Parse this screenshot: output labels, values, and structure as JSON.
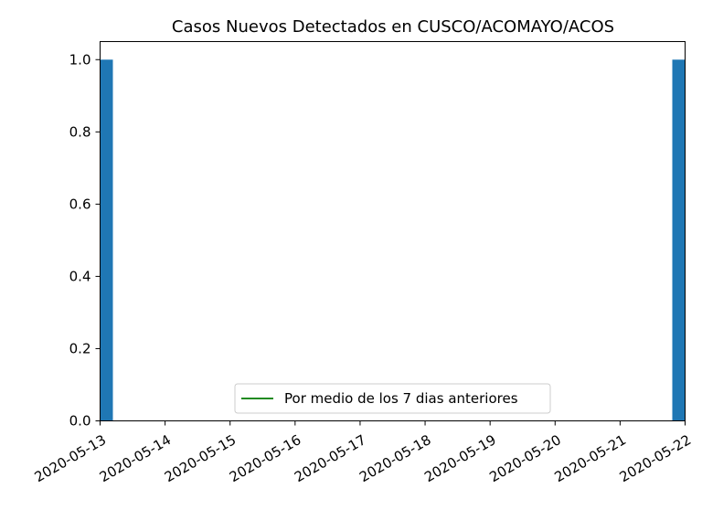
{
  "colors": {
    "bar": "#1f77b4",
    "avg_line": "#228b22",
    "axis": "#000000",
    "background": "#ffffff"
  },
  "chart_data": {
    "type": "bar",
    "title": "Casos Nuevos Detectados en CUSCO/ACOMAYO/ACOS",
    "xlabel": "",
    "ylabel": "",
    "x_tick_labels": [
      "2020-05-13",
      "2020-05-14",
      "2020-05-15",
      "2020-05-16",
      "2020-05-17",
      "2020-05-18",
      "2020-05-19",
      "2020-05-20",
      "2020-05-21",
      "2020-05-22"
    ],
    "y_tick_labels": [
      "0.0",
      "0.2",
      "0.4",
      "0.6",
      "0.8",
      "1.0"
    ],
    "ylim": [
      0,
      1.05
    ],
    "grid": false,
    "legend_position": "bottom-center",
    "series": [
      {
        "type": "bar",
        "points": [
          {
            "date": "2020-05-13",
            "value": 1
          },
          {
            "date": "2020-05-22",
            "value": 1
          }
        ]
      },
      {
        "type": "line",
        "name": "Por medio de los 7 dias anteriores",
        "points": []
      }
    ]
  }
}
